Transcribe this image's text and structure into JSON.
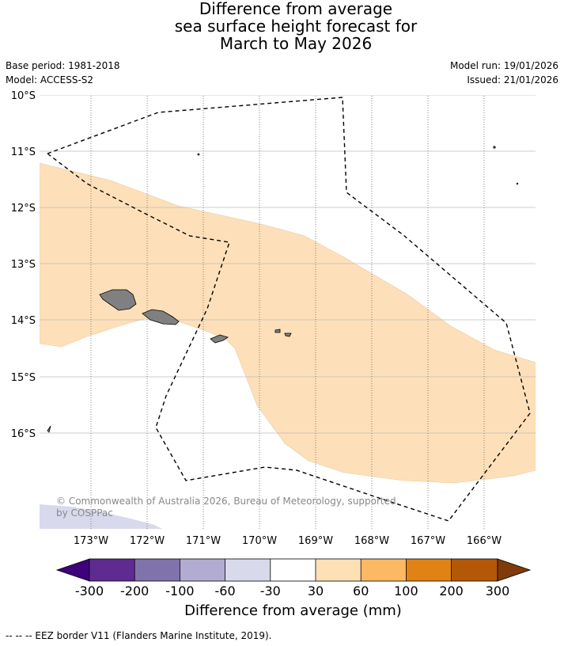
{
  "title": {
    "line1": "Difference from average",
    "line2": "sea surface height forecast for",
    "line3": "March to May 2026"
  },
  "meta": {
    "base_period": "Base period: 1981-2018",
    "model": "Model: ACCESS-S2",
    "model_run": "Model run: 19/01/2026",
    "issued": "Issued: 21/01/2026"
  },
  "map": {
    "lat_labels": [
      "10°S",
      "11°S",
      "12°S",
      "13°S",
      "14°S",
      "15°S",
      "16°S"
    ],
    "lon_labels": [
      "173°W",
      "172°W",
      "171°W",
      "170°W",
      "169°W",
      "168°W",
      "167°W",
      "166°W"
    ],
    "copyright": "© Commonwealth of Australia 2026, Bureau of Meteorology, supported by COSPPac",
    "colors": {
      "land": "#808080",
      "band_30_60": "#fde0b9",
      "band_neg30_neg60": "#d8d9ec"
    }
  },
  "colorbar": {
    "tick_labels": [
      "-300",
      "-200",
      "-100",
      "-60",
      "-30",
      "30",
      "60",
      "100",
      "200",
      "300"
    ],
    "colors": [
      "#3f007d",
      "#5e2b91",
      "#8073ac",
      "#b2abd2",
      "#d8daeb",
      "#ffffff",
      "#fee0b6",
      "#fdb863",
      "#e08214",
      "#b35806",
      "#7f3b08"
    ],
    "label": "Difference from average (mm)"
  },
  "footnote": "--  --  -- EEZ border V11 (Flanders Marine Institute, 2019)."
}
